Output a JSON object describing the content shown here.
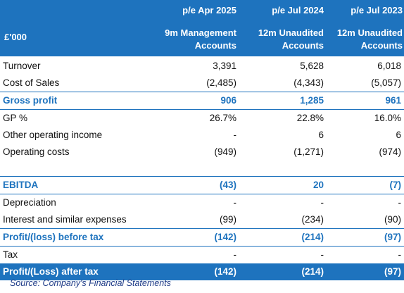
{
  "header": {
    "currency": "£'000",
    "columns": [
      {
        "period": "p/e Apr 2025",
        "desc_line1": "9m Management",
        "desc_line2": "Accounts"
      },
      {
        "period": "p/e Jul 2024",
        "desc_line1": "12m Unaudited",
        "desc_line2": "Accounts"
      },
      {
        "period": "p/e Jul 2023",
        "desc_line1": "12m Unaudited",
        "desc_line2": "Accounts"
      }
    ]
  },
  "rows": {
    "turnover": {
      "label": "Turnover",
      "v": [
        "3,391",
        "5,628",
        "6,018"
      ]
    },
    "cost_of_sales": {
      "label": "Cost of Sales",
      "v": [
        "(2,485)",
        "(4,343)",
        "(5,057)"
      ]
    },
    "gross_profit": {
      "label": "Gross profit",
      "v": [
        "906",
        "1,285",
        "961"
      ]
    },
    "gp_pct": {
      "label": "GP %",
      "v": [
        "26.7%",
        "22.8%",
        "16.0%"
      ]
    },
    "other_income": {
      "label": "Other operating income",
      "v": [
        "-",
        "6",
        "6"
      ]
    },
    "operating_costs": {
      "label": "Operating costs",
      "v": [
        "(949)",
        "(1,271)",
        "(974)"
      ]
    },
    "ebitda": {
      "label": "EBITDA",
      "v": [
        "(43)",
        "20",
        "(7)"
      ]
    },
    "depreciation": {
      "label": "Depreciation",
      "v": [
        "-",
        "-",
        "-"
      ]
    },
    "interest": {
      "label": "Interest and similar expenses",
      "v": [
        "(99)",
        "(234)",
        "(90)"
      ]
    },
    "pbt": {
      "label": "Profit/(loss) before tax",
      "v": [
        "(142)",
        "(214)",
        "(97)"
      ]
    },
    "tax": {
      "label": "Tax",
      "v": [
        "-",
        "-",
        "-"
      ]
    },
    "pat": {
      "label": "Profit/(Loss) after tax",
      "v": [
        "(142)",
        "(214)",
        "(97)"
      ]
    }
  },
  "source": "Source: Company's Financial Statements",
  "colors": {
    "accent": "#1e73be",
    "source_text": "#1f3c88"
  }
}
